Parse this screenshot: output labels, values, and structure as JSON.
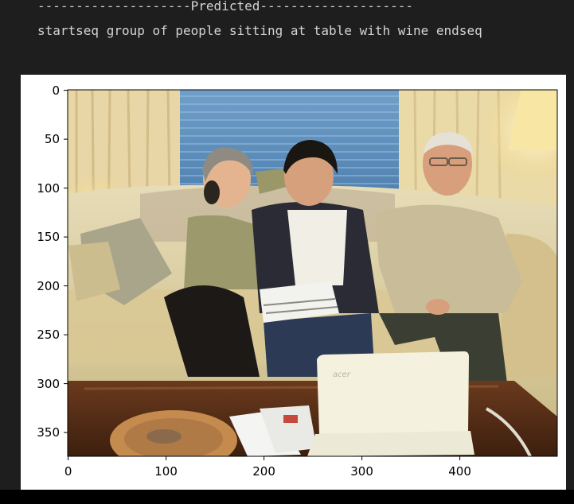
{
  "output": {
    "predicted_header": "--------------------Predicted--------------------",
    "predicted_caption": "startseq group of people sitting at table with wine endseq"
  },
  "plot": {
    "type": "image",
    "image_description": "photograph of three people sitting on a couch reading, with a laptop on a coffee table",
    "xlim": [
      0,
      500
    ],
    "ylim": [
      375,
      0
    ],
    "x_ticks": [
      "0",
      "100",
      "200",
      "300",
      "400"
    ],
    "y_ticks": [
      "0",
      "50",
      "100",
      "150",
      "200",
      "250",
      "300",
      "350"
    ]
  }
}
